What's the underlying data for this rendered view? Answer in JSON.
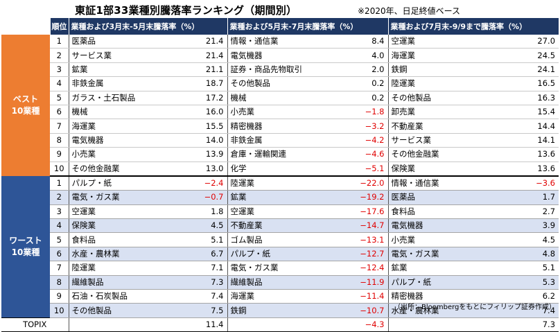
{
  "title": "東証1部33業種別騰落率ランキング（期間別）",
  "note": "※2020年、日足終値ベース",
  "header": {
    "rank": "順位",
    "period1": "業種および3月末-5月末騰落率（%）",
    "period2": "業種および5月末-7月末騰落率（%）",
    "period3": "業種および7月末-9/9まで騰落率（%）"
  },
  "groups": {
    "best": "ベスト\n10業種",
    "worst": "ワースト\n10業種"
  },
  "best": [
    {
      "rank": "1",
      "p1": {
        "n": "医薬品",
        "v": "21.4"
      },
      "p2": {
        "n": "情報・通信業",
        "v": "8.4"
      },
      "p3": {
        "n": "空運業",
        "v": "27.0"
      }
    },
    {
      "rank": "2",
      "p1": {
        "n": "サービス業",
        "v": "21.4"
      },
      "p2": {
        "n": "電気機器",
        "v": "4.0"
      },
      "p3": {
        "n": "海運業",
        "v": "24.5"
      }
    },
    {
      "rank": "3",
      "p1": {
        "n": "鉱業",
        "v": "21.1"
      },
      "p2": {
        "n": "証券・商品先物取引",
        "v": "2.0"
      },
      "p3": {
        "n": "鉄鋼",
        "v": "24.1"
      }
    },
    {
      "rank": "4",
      "p1": {
        "n": "非鉄金属",
        "v": "18.7"
      },
      "p2": {
        "n": "その他製品",
        "v": "0.2"
      },
      "p3": {
        "n": "陸運業",
        "v": "16.5"
      }
    },
    {
      "rank": "5",
      "p1": {
        "n": "ガラス・土石製品",
        "v": "17.2"
      },
      "p2": {
        "n": "機械",
        "v": "0.2"
      },
      "p3": {
        "n": "その他製品",
        "v": "16.3"
      }
    },
    {
      "rank": "6",
      "p1": {
        "n": "機械",
        "v": "16.0"
      },
      "p2": {
        "n": "小売業",
        "v": "−1.8"
      },
      "p3": {
        "n": "卸売業",
        "v": "15.4"
      }
    },
    {
      "rank": "7",
      "p1": {
        "n": "海運業",
        "v": "15.5"
      },
      "p2": {
        "n": "精密機器",
        "v": "−3.2"
      },
      "p3": {
        "n": "不動産業",
        "v": "14.4"
      }
    },
    {
      "rank": "8",
      "p1": {
        "n": "電気機器",
        "v": "14.0"
      },
      "p2": {
        "n": "非鉄金属",
        "v": "−4.2"
      },
      "p3": {
        "n": "サービス業",
        "v": "14.1"
      }
    },
    {
      "rank": "9",
      "p1": {
        "n": "小売業",
        "v": "13.9"
      },
      "p2": {
        "n": "倉庫・運輸関連",
        "v": "−4.6"
      },
      "p3": {
        "n": "その他金融業",
        "v": "13.6"
      }
    },
    {
      "rank": "10",
      "p1": {
        "n": "その他金融業",
        "v": "13.0"
      },
      "p2": {
        "n": "化学",
        "v": "−5.1"
      },
      "p3": {
        "n": "保険業",
        "v": "13.6"
      }
    }
  ],
  "worst": [
    {
      "rank": "1",
      "p1": {
        "n": "パルプ・紙",
        "v": "−2.4"
      },
      "p2": {
        "n": "陸運業",
        "v": "−22.0"
      },
      "p3": {
        "n": "情報・通信業",
        "v": "−3.6"
      }
    },
    {
      "rank": "2",
      "p1": {
        "n": "電気・ガス業",
        "v": "−0.7"
      },
      "p2": {
        "n": "鉱業",
        "v": "−19.2"
      },
      "p3": {
        "n": "医薬品",
        "v": "1.7"
      }
    },
    {
      "rank": "3",
      "p1": {
        "n": "空運業",
        "v": "1.8"
      },
      "p2": {
        "n": "空運業",
        "v": "−17.6"
      },
      "p3": {
        "n": "食料品",
        "v": "2.7"
      }
    },
    {
      "rank": "4",
      "p1": {
        "n": "保険業",
        "v": "4.5"
      },
      "p2": {
        "n": "不動産業",
        "v": "−14.7"
      },
      "p3": {
        "n": "電気機器",
        "v": "3.9"
      }
    },
    {
      "rank": "5",
      "p1": {
        "n": "食料品",
        "v": "5.1"
      },
      "p2": {
        "n": "ゴム製品",
        "v": "−13.1"
      },
      "p3": {
        "n": "小売業",
        "v": "4.5"
      }
    },
    {
      "rank": "6",
      "p1": {
        "n": "水産・農林業",
        "v": "6.7"
      },
      "p2": {
        "n": "パルプ・紙",
        "v": "−12.7"
      },
      "p3": {
        "n": "電気・ガス業",
        "v": "4.8"
      }
    },
    {
      "rank": "7",
      "p1": {
        "n": "陸運業",
        "v": "7.1"
      },
      "p2": {
        "n": "電気・ガス業",
        "v": "−12.4"
      },
      "p3": {
        "n": "鉱業",
        "v": "5.1"
      }
    },
    {
      "rank": "8",
      "p1": {
        "n": "繊維製品",
        "v": "7.3"
      },
      "p2": {
        "n": "繊維製品",
        "v": "−11.9"
      },
      "p3": {
        "n": "パルプ・紙",
        "v": "5.3"
      }
    },
    {
      "rank": "9",
      "p1": {
        "n": "石油・石炭製品",
        "v": "7.4"
      },
      "p2": {
        "n": "海運業",
        "v": "−11.4"
      },
      "p3": {
        "n": "精密機器",
        "v": "6.2"
      }
    },
    {
      "rank": "10",
      "p1": {
        "n": "その他製品",
        "v": "7.5"
      },
      "p2": {
        "n": "鉄鋼",
        "v": "−10.7"
      },
      "p3": {
        "n": "水産・農林業",
        "v": "7.4"
      }
    }
  ],
  "topix": {
    "label": "TOPIX",
    "v1": "11.4",
    "v2": "−4.3",
    "v3": "7.3"
  },
  "credit": "（出所：Bloombergをもとにフィリップ証券作成）"
}
